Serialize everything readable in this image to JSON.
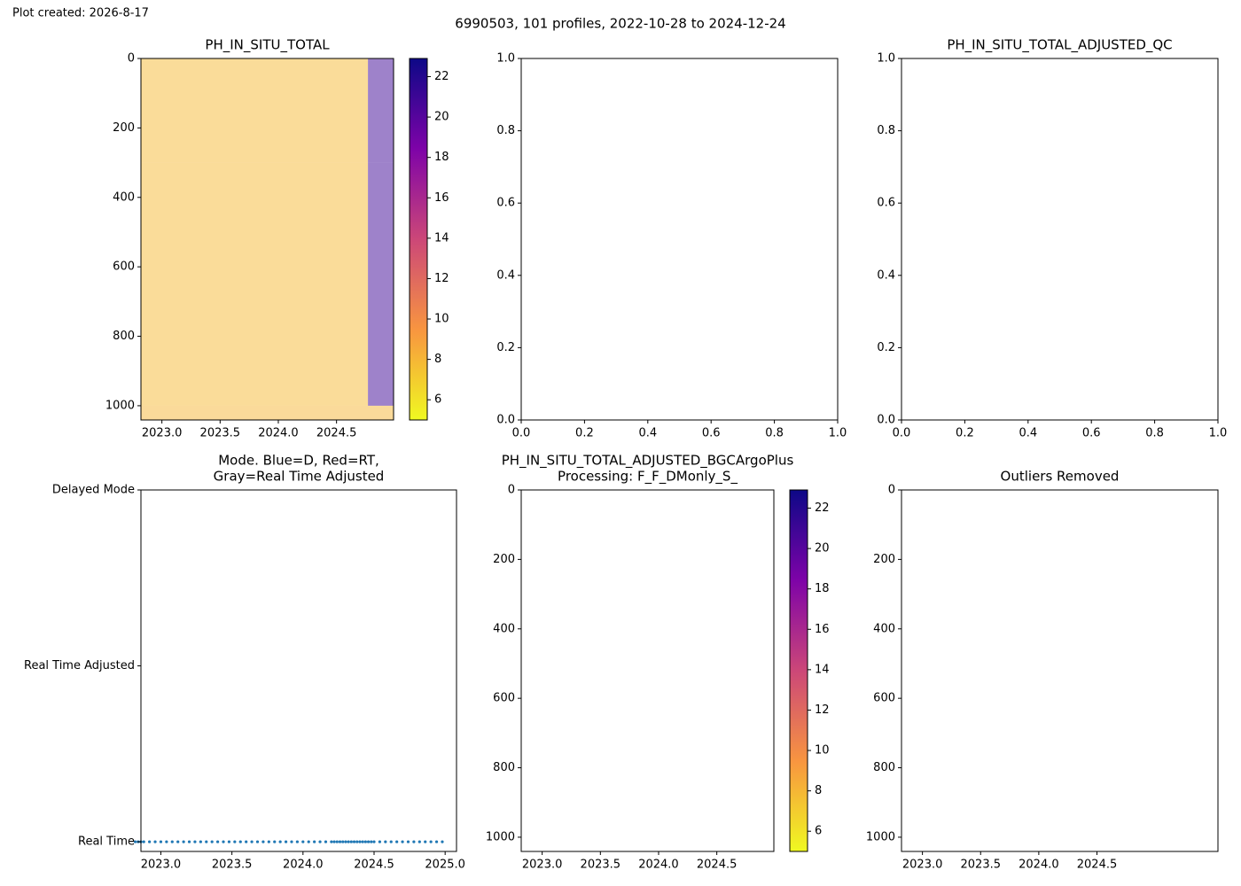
{
  "header": "Plot created: 2026-8-17",
  "title": "6990503, 101 profiles, 2022-10-28 to 2024-12-24",
  "chart_data": [
    {
      "type": "heatmap",
      "title": [
        "PH_IN_SITU_TOTAL"
      ],
      "xlim": [
        2022.82,
        2024.99
      ],
      "xticks": [
        {
          "value": 2023,
          "label": "2023.0"
        },
        2023.5,
        {
          "value": 2024,
          "label": "2024.0"
        },
        2024.5
      ],
      "ylim": [
        1041,
        0
      ],
      "yticks": [
        0,
        200,
        400,
        600,
        800,
        1000
      ],
      "cells": [
        {
          "x": [
            2022.82,
            2024.77
          ],
          "depth": [
            0,
            300
          ],
          "value": 7.8
        },
        {
          "x": [
            2024.77,
            2024.99
          ],
          "depth": [
            0,
            300
          ],
          "value": 21
        },
        {
          "x": [
            2022.82,
            2024.77
          ],
          "depth": [
            300,
            1000
          ],
          "value": 7.8
        },
        {
          "x": [
            2024.77,
            2024.99
          ],
          "depth": [
            300,
            1000
          ],
          "value": 21
        },
        {
          "x": [
            2022.82,
            2024.99
          ],
          "depth": [
            1000,
            1041
          ],
          "value": 8
        }
      ],
      "colorbar": {
        "cmap": "plasma_r",
        "lim": [
          5,
          22.9
        ],
        "ticks": [
          6,
          8,
          10,
          12,
          14,
          16,
          18,
          20,
          22
        ]
      }
    },
    {
      "type": "empty",
      "title": [
        ""
      ],
      "xlim": [
        0,
        1
      ],
      "xticks": [
        {
          "value": 0,
          "label": "0.0"
        },
        0.2,
        0.4,
        0.6,
        0.8,
        {
          "value": 1,
          "label": "1.0"
        }
      ],
      "ylim": [
        0,
        1
      ],
      "yticks": [
        {
          "value": 0,
          "label": "0.0"
        },
        0.2,
        0.4,
        0.6,
        0.8,
        {
          "value": 1,
          "label": "1.0"
        }
      ]
    },
    {
      "type": "empty",
      "title": [
        "PH_IN_SITU_TOTAL_ADJUSTED_QC"
      ],
      "xlim": [
        0,
        1
      ],
      "xticks": [
        {
          "value": 0,
          "label": "0.0"
        },
        0.2,
        0.4,
        0.6,
        0.8,
        {
          "value": 1,
          "label": "1.0"
        }
      ],
      "ylim": [
        0,
        1
      ],
      "yticks": [
        {
          "value": 0,
          "label": "0.0"
        },
        0.2,
        0.4,
        0.6,
        0.8,
        {
          "value": 1,
          "label": "1.0"
        }
      ]
    },
    {
      "type": "scatter",
      "title": [
        "Mode. Blue=D, Red=RT,",
        "Gray=Real Time Adjusted"
      ],
      "xlim": [
        2022.86,
        2025.08
      ],
      "xticks": [
        {
          "value": 2023,
          "label": "2023.0"
        },
        2023.5,
        {
          "value": 2024,
          "label": "2024.0"
        },
        2024.5,
        {
          "value": 2025,
          "label": "2025.0"
        }
      ],
      "ylim": [
        0.945,
        3
      ],
      "yticks": [
        {
          "value": 1,
          "label": "Real Time"
        },
        {
          "value": 2,
          "label": "Real Time Adjusted"
        },
        {
          "value": 3,
          "label": "Delayed Mode"
        }
      ],
      "color": "#1f77b4",
      "x": [
        2022.82,
        2022.84,
        2022.86,
        2022.88,
        2022.92,
        2022.96,
        2023.0,
        2023.04,
        2023.08,
        2023.12,
        2023.16,
        2023.2,
        2023.24,
        2023.28,
        2023.32,
        2023.36,
        2023.4,
        2023.44,
        2023.48,
        2023.52,
        2023.56,
        2023.6,
        2023.64,
        2023.68,
        2023.72,
        2023.76,
        2023.8,
        2023.84,
        2023.88,
        2023.92,
        2023.96,
        2024.0,
        2024.04,
        2024.08,
        2024.12,
        2024.16,
        2024.2,
        2024.22,
        2024.24,
        2024.26,
        2024.28,
        2024.3,
        2024.32,
        2024.34,
        2024.36,
        2024.38,
        2024.4,
        2024.42,
        2024.44,
        2024.46,
        2024.48,
        2024.5,
        2024.54,
        2024.58,
        2024.62,
        2024.66,
        2024.7,
        2024.74,
        2024.78,
        2024.82,
        2024.86,
        2024.9,
        2024.94,
        2024.98
      ],
      "values": [
        1,
        1,
        1,
        1,
        1,
        1,
        1,
        1,
        1,
        1,
        1,
        1,
        1,
        1,
        1,
        1,
        1,
        1,
        1,
        1,
        1,
        1,
        1,
        1,
        1,
        1,
        1,
        1,
        1,
        1,
        1,
        1,
        1,
        1,
        1,
        1,
        1,
        1,
        1,
        1,
        1,
        1,
        1,
        1,
        1,
        1,
        1,
        1,
        1,
        1,
        1,
        1,
        1,
        1,
        1,
        1,
        1,
        1,
        1,
        1,
        1,
        1,
        1,
        1
      ]
    },
    {
      "type": "heatmap",
      "title": [
        "PH_IN_SITU_TOTAL_ADJUSTED_BGCArgoPlus",
        "Processing: F_F_DMonly_S_"
      ],
      "xlim": [
        2022.82,
        2024.99
      ],
      "xticks": [
        {
          "value": 2023,
          "label": "2023.0"
        },
        2023.5,
        {
          "value": 2024,
          "label": "2024.0"
        },
        2024.5
      ],
      "ylim": [
        1041,
        0
      ],
      "yticks": [
        0,
        200,
        400,
        600,
        800,
        1000
      ],
      "cells": [],
      "colorbar": {
        "cmap": "plasma_r",
        "lim": [
          5,
          22.9
        ],
        "ticks": [
          6,
          8,
          10,
          12,
          14,
          16,
          18,
          20,
          22
        ]
      }
    },
    {
      "type": "empty",
      "title": [
        "Outliers Removed"
      ],
      "xlim": [
        2022.82,
        2025.54
      ],
      "xticks": [
        {
          "value": 2023,
          "label": "2023.0"
        },
        2023.5,
        {
          "value": 2024,
          "label": "2024.0"
        },
        2024.5
      ],
      "ylim": [
        1041,
        0
      ],
      "yticks": [
        0,
        200,
        400,
        600,
        800,
        1000
      ]
    }
  ]
}
